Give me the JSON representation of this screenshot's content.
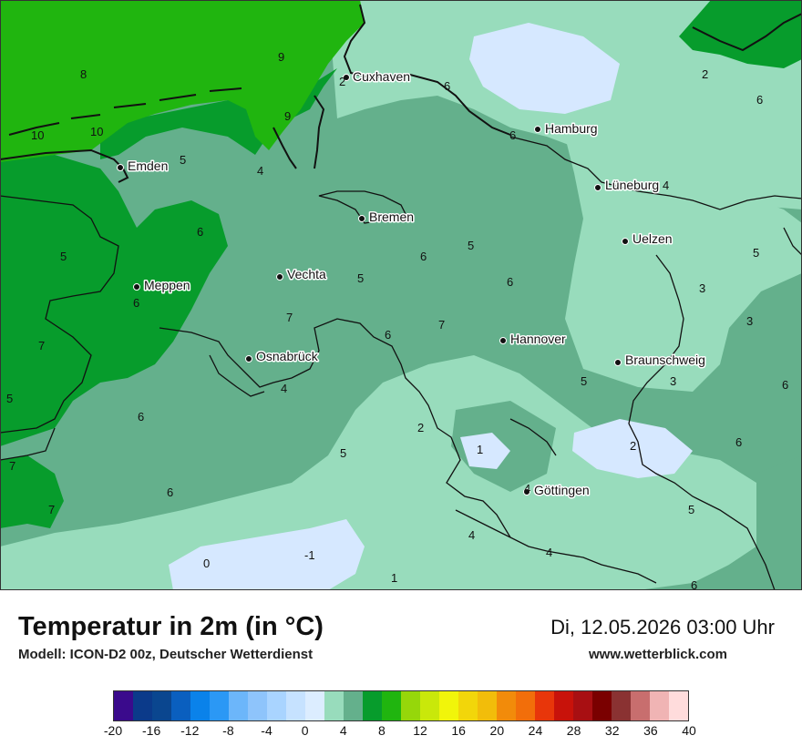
{
  "map": {
    "cities": [
      {
        "name": "Cuxhaven",
        "marker": "city-dot"
      },
      {
        "name": "Hamburg",
        "marker": "city-dot"
      },
      {
        "name": "Emden",
        "marker": "city-dot"
      },
      {
        "name": "Lüneburg",
        "marker": "city-dot"
      },
      {
        "name": "Bremen",
        "marker": "city-dot"
      },
      {
        "name": "Uelzen",
        "marker": "city-dot"
      },
      {
        "name": "Vechta",
        "marker": "city-dot"
      },
      {
        "name": "Meppen",
        "marker": "city-dot"
      },
      {
        "name": "Osnabrück",
        "marker": "city-dot"
      },
      {
        "name": "Hannover",
        "marker": "city-dot"
      },
      {
        "name": "Braunschweig",
        "marker": "city-dot"
      },
      {
        "name": "Göttingen",
        "marker": "city-dot"
      }
    ],
    "values": [
      "8",
      "9",
      "2",
      "6",
      "2",
      "6",
      "10",
      "10",
      "9",
      "6",
      "5",
      "4",
      "4",
      "6",
      "6",
      "5",
      "5",
      "6",
      "5",
      "5",
      "6",
      "3",
      "3",
      "7",
      "7",
      "6",
      "7",
      "6",
      "5",
      "4",
      "3",
      "6",
      "5",
      "2",
      "1",
      "2",
      "6",
      "5",
      "7",
      "6",
      "4",
      "7",
      "4",
      "5",
      "-1",
      "0",
      "4",
      "1",
      "6"
    ],
    "colors": {
      "sea_green": "#20b50f",
      "dark_green": "#079c2c",
      "mid_green": "#64b08c",
      "light_green": "#98dcbc",
      "pale_blue": "#d6e8ff"
    }
  },
  "footer": {
    "title": "Temperatur in 2m (in °C)",
    "model": "Modell: ICON-D2 00z, Deutscher Wetterdienst",
    "datetime": "Di, 12.05.2026 03:00 Uhr",
    "website": "www.wetterblick.com"
  },
  "legend": {
    "colors": [
      "#3a0a8c",
      "#0b3a8a",
      "#0a468f",
      "#0a5fbf",
      "#0a82ea",
      "#2b98f5",
      "#6cb6fa",
      "#8ec4fb",
      "#a9d4ff",
      "#c6e2ff",
      "#dcedff",
      "#98dcbc",
      "#64b08c",
      "#079c2c",
      "#20b50f",
      "#96d70a",
      "#c9e80a",
      "#f1f50a",
      "#f2d60a",
      "#f2bd0a",
      "#f28b0a",
      "#f26e0a",
      "#e8360a",
      "#c8120a",
      "#a80f12",
      "#7a0000",
      "#8a3232",
      "#c86e6e",
      "#f0b4b4",
      "#ffdcdc"
    ],
    "ticks": [
      "-20",
      "-16",
      "-12",
      "-8",
      "-4",
      "0",
      "4",
      "8",
      "12",
      "16",
      "20",
      "24",
      "28",
      "32",
      "36",
      "40"
    ]
  }
}
